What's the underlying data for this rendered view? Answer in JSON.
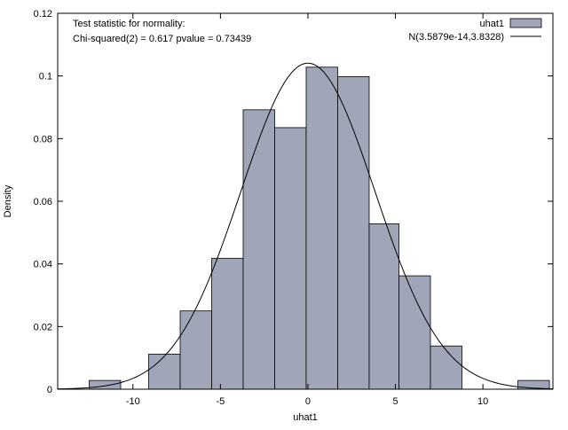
{
  "chart_data": {
    "type": "bar",
    "title": "",
    "xlabel": "uhat1",
    "ylabel": "Density",
    "xlim": [
      -14.3,
      14
    ],
    "ylim": [
      0,
      0.12
    ],
    "xticks": [
      -10,
      -5,
      0,
      5,
      10
    ],
    "yticks": [
      0,
      0.02,
      0.04,
      0.06,
      0.08,
      0.1,
      0.12
    ],
    "xtick_labels": [
      "-10",
      "-5",
      "0",
      "5",
      "10"
    ],
    "ytick_labels": [
      "0",
      "0.02",
      "0.04",
      "0.06",
      "0.08",
      "0.1",
      "0.12"
    ],
    "annotation": {
      "line1": "Test statistic for normality:",
      "line2": "Chi-squared(2) = 0.617 pvalue = 0.73439"
    },
    "legend": {
      "position": "top-right",
      "entries": [
        {
          "label": "uhat1",
          "kind": "bar"
        },
        {
          "label": "N(3.5879e-14,3.8328)",
          "kind": "line"
        }
      ]
    },
    "bins": [
      {
        "left": -12.5,
        "right": -10.7,
        "density": 0.0028
      },
      {
        "left": -9.1,
        "right": -7.3,
        "density": 0.0112
      },
      {
        "left": -7.3,
        "right": -5.5,
        "density": 0.025
      },
      {
        "left": -5.5,
        "right": -3.7,
        "density": 0.0418
      },
      {
        "left": -3.7,
        "right": -1.9,
        "density": 0.0892
      },
      {
        "left": -1.9,
        "right": -0.1,
        "density": 0.0835
      },
      {
        "left": -0.1,
        "right": 1.7,
        "density": 0.1028
      },
      {
        "left": 1.7,
        "right": 3.5,
        "density": 0.0998
      },
      {
        "left": 3.5,
        "right": 5.2,
        "density": 0.0528
      },
      {
        "left": 5.2,
        "right": 7.0,
        "density": 0.0362
      },
      {
        "left": 7.0,
        "right": 8.8,
        "density": 0.0138
      },
      {
        "left": 12.0,
        "right": 13.8,
        "density": 0.0028
      }
    ],
    "normal_curve": {
      "mean": 3.5879e-14,
      "sd": 3.8328
    },
    "colors": {
      "bar_fill": "#a0a6b8",
      "bar_stroke": "#000000",
      "curve": "#000000",
      "axis": "#000000"
    }
  }
}
